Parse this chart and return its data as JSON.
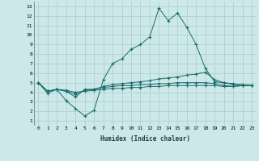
{
  "xlabel": "Humidex (Indice chaleur)",
  "background_color": "#cce8e8",
  "grid_color": "#aacccc",
  "line_color": "#1a6b6b",
  "xlim": [
    -0.5,
    23.5
  ],
  "ylim": [
    0.5,
    13.5
  ],
  "xticks": [
    0,
    1,
    2,
    3,
    4,
    5,
    6,
    7,
    8,
    9,
    10,
    11,
    12,
    13,
    14,
    15,
    16,
    17,
    18,
    19,
    20,
    21,
    22,
    23
  ],
  "yticks": [
    1,
    2,
    3,
    4,
    5,
    6,
    7,
    8,
    9,
    10,
    11,
    12,
    13
  ],
  "series": [
    [
      5.0,
      3.9,
      4.3,
      3.1,
      2.3,
      1.5,
      2.1,
      5.3,
      7.0,
      7.5,
      8.5,
      9.0,
      9.8,
      12.8,
      11.5,
      12.3,
      10.8,
      9.0,
      6.5,
      5.1,
      5.0,
      4.8,
      4.8,
      4.7
    ],
    [
      5.0,
      4.1,
      4.3,
      4.1,
      3.5,
      4.3,
      4.3,
      4.6,
      4.8,
      4.9,
      5.0,
      5.1,
      5.2,
      5.4,
      5.5,
      5.6,
      5.8,
      5.9,
      6.1,
      5.3,
      5.0,
      4.9,
      4.7,
      4.7
    ],
    [
      5.0,
      4.1,
      4.3,
      4.1,
      3.8,
      4.2,
      4.3,
      4.5,
      4.6,
      4.7,
      4.7,
      4.8,
      4.8,
      4.9,
      4.9,
      5.0,
      5.0,
      5.0,
      5.0,
      4.9,
      4.7,
      4.6,
      4.7,
      4.7
    ],
    [
      5.0,
      4.1,
      4.3,
      4.2,
      4.0,
      4.1,
      4.2,
      4.3,
      4.4,
      4.4,
      4.5,
      4.5,
      4.6,
      4.6,
      4.7,
      4.7,
      4.7,
      4.7,
      4.7,
      4.7,
      4.6,
      4.6,
      4.7,
      4.7
    ]
  ]
}
